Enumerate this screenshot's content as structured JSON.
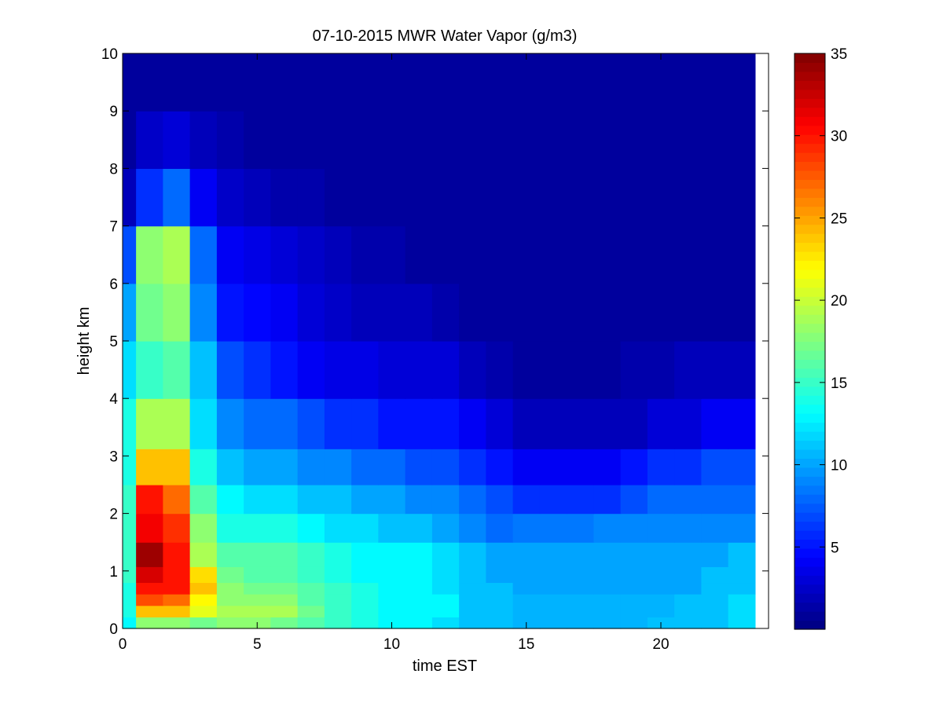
{
  "chart_data": {
    "type": "heatmap",
    "title": "07-10-2015 MWR Water Vapor (g/m3)",
    "xlabel": "time EST",
    "ylabel": "height km",
    "xlim": [
      0,
      24
    ],
    "ylim": [
      0,
      10
    ],
    "x_ticks": [
      "0",
      "5",
      "10",
      "15",
      "20"
    ],
    "y_ticks": [
      "0",
      "1",
      "2",
      "3",
      "4",
      "5",
      "6",
      "7",
      "8",
      "9",
      "10"
    ],
    "colorbar": {
      "colormap": "jet",
      "range": [
        0,
        35
      ],
      "ticks": [
        "5",
        "10",
        "15",
        "20",
        "25",
        "30",
        "35"
      ]
    },
    "x_centers": [
      0,
      1,
      2,
      3,
      4,
      5,
      6,
      7,
      8,
      9,
      10,
      11,
      12,
      13,
      14,
      15,
      16,
      17,
      18,
      19,
      20,
      21,
      22,
      23
    ],
    "y_centers": [
      0.1,
      0.3,
      0.5,
      0.7,
      0.9,
      1.25,
      1.75,
      2.25,
      2.75,
      3.5,
      4.5,
      5.5,
      6.5,
      7.5,
      8.5,
      9.5
    ],
    "values": [
      [
        13,
        18,
        18,
        17,
        18,
        18,
        17,
        16,
        15,
        14,
        13,
        13,
        12,
        11,
        11,
        10.5,
        10.5,
        10.5,
        10.5,
        10.5,
        11,
        11,
        11,
        12
      ],
      [
        14,
        24,
        24,
        21,
        19,
        19,
        19,
        17,
        15,
        14,
        13,
        13,
        13,
        11,
        11,
        10.5,
        10.5,
        10.5,
        10.5,
        10.5,
        10.5,
        11,
        11,
        12
      ],
      [
        14,
        28,
        27,
        22,
        18,
        18,
        18,
        16,
        15,
        14,
        13,
        13,
        13,
        11,
        11,
        10.5,
        10.5,
        10.5,
        10.5,
        10.5,
        10.5,
        11,
        11,
        12
      ],
      [
        14,
        30,
        30,
        24,
        18,
        17,
        17,
        16,
        15,
        14,
        13,
        13,
        12,
        11,
        11,
        10,
        10,
        10,
        10,
        10,
        10,
        10,
        11,
        11
      ],
      [
        15,
        32,
        30,
        23,
        17,
        16,
        16,
        15,
        14,
        13,
        13,
        13,
        12,
        11,
        10,
        10,
        10,
        10,
        10,
        10,
        10,
        10,
        11,
        11
      ],
      [
        15,
        34,
        30,
        19,
        16,
        16,
        16,
        15,
        14,
        13,
        13,
        13,
        12,
        11,
        10,
        10,
        10,
        10,
        10,
        10,
        10,
        10,
        10,
        11
      ],
      [
        15,
        31,
        29,
        18,
        14,
        14,
        14,
        13,
        12,
        12,
        11,
        11,
        10,
        9,
        8,
        8.5,
        8.5,
        8.5,
        9,
        9,
        9,
        9,
        9,
        9
      ],
      [
        15,
        30,
        27,
        16,
        13,
        12,
        12,
        11,
        11,
        10,
        10,
        9,
        9,
        8,
        7,
        6,
        6,
        6,
        6,
        7,
        8,
        8,
        8,
        8
      ],
      [
        14,
        24,
        24,
        14,
        11,
        10,
        10,
        9,
        9,
        8,
        8,
        7,
        7,
        6,
        5,
        4,
        4,
        4,
        4,
        5,
        6,
        6,
        7,
        7
      ],
      [
        14,
        19,
        19,
        12,
        9,
        8,
        8,
        7,
        6,
        6,
        5,
        5,
        5,
        4,
        3,
        2,
        2,
        2,
        2,
        2,
        3,
        3,
        4,
        4
      ],
      [
        12,
        15,
        16,
        11,
        7,
        6,
        5,
        4,
        3.5,
        3.5,
        3,
        3,
        3,
        2,
        1.5,
        1,
        1,
        1,
        1,
        1.5,
        1.5,
        2,
        2,
        2
      ],
      [
        10,
        17,
        18,
        9,
        5,
        4.5,
        4,
        3,
        2.5,
        2,
        2,
        2,
        1.5,
        1,
        1,
        1,
        1,
        1,
        1,
        1,
        1,
        1,
        1,
        1
      ],
      [
        7,
        18,
        19,
        8,
        4,
        3.5,
        3,
        2.5,
        2,
        1.5,
        1.5,
        1,
        1,
        1,
        1,
        1,
        1,
        1,
        1,
        1,
        1,
        1,
        1,
        1
      ],
      [
        2,
        6,
        8,
        4,
        2.5,
        2,
        1.5,
        1.5,
        1,
        1,
        1,
        1,
        1,
        1,
        1,
        1,
        1,
        1,
        1,
        1,
        1,
        1,
        1,
        1
      ],
      [
        1,
        2.5,
        3,
        2,
        1.5,
        1,
        1,
        1,
        1,
        1,
        1,
        1,
        1,
        1,
        1,
        1,
        1,
        1,
        1,
        1,
        1,
        1,
        1,
        1
      ],
      [
        1,
        1,
        1,
        1,
        1,
        1,
        1,
        1,
        1,
        1,
        1,
        1,
        1,
        1,
        1,
        1,
        1,
        1,
        1,
        1,
        1,
        1,
        1,
        1
      ]
    ]
  }
}
